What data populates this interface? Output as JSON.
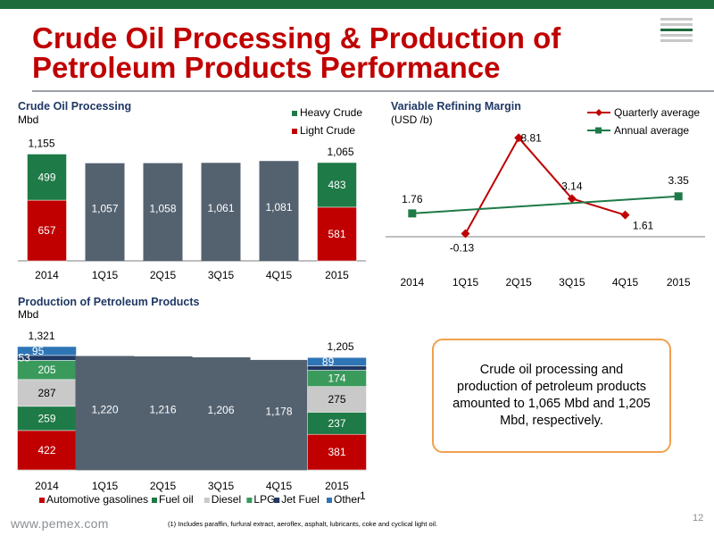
{
  "header": {
    "title_line1": "Crude Oil Processing & Production of",
    "title_line2": "Petroleum Products Performance",
    "page_number": "12",
    "website": "www.pemex.com",
    "footnote": "(1) Includes paraffin, furfural extract, aeroflex, asphalt, lubricants, coke and cyclical light oil.",
    "colors": {
      "brand_green": "#1e6b3c",
      "title_red": "#c00000",
      "callout_border": "#f0a050"
    }
  },
  "callout": {
    "text": "Crude oil processing and production of petroleum products amounted to 1,065 Mbd and 1,205 Mbd, respectively."
  },
  "chart_data": [
    {
      "id": "crude",
      "type": "bar",
      "title": "Crude Oil Processing",
      "subtitle": "Mbd",
      "categories": [
        "2014",
        "1Q15",
        "2Q15",
        "3Q15",
        "4Q15",
        "2015"
      ],
      "stacked_breakdown": [
        {
          "name": "Light Crude",
          "color": "#c00000",
          "values": [
            657,
            null,
            null,
            null,
            null,
            581
          ],
          "labels": [
            "657",
            "",
            "",
            "",
            "",
            "581"
          ]
        },
        {
          "name": "Heavy Crude",
          "color": "#1e7a46",
          "values": [
            499,
            null,
            null,
            null,
            null,
            483
          ],
          "labels": [
            "499",
            "",
            "",
            "",
            "",
            "483"
          ]
        }
      ],
      "totals": [
        1155,
        1057,
        1058,
        1061,
        1081,
        1065
      ],
      "total_labels": [
        "1,155",
        "1,057",
        "1,058",
        "1,061",
        "1,081",
        "1,065"
      ],
      "total_color": "#546270",
      "legend": [
        {
          "name": "Heavy Crude",
          "color": "#1e7a46"
        },
        {
          "name": "Light Crude",
          "color": "#c00000"
        }
      ]
    },
    {
      "id": "margin",
      "type": "line",
      "title": "Variable Refining Margin",
      "subtitle": "(USD /b)",
      "x": [
        "2014",
        "1Q15",
        "2Q15",
        "3Q15",
        "4Q15",
        "2015"
      ],
      "series": [
        {
          "name": "Quarterly average",
          "color": "#c00000",
          "points": [
            {
              "x": "1Q15",
              "y": -0.13,
              "label": "-0.13"
            },
            {
              "x": "2Q15",
              "y": 8.81,
              "label": "8.81"
            },
            {
              "x": "3Q15",
              "y": 3.14,
              "label": "3.14"
            },
            {
              "x": "4Q15",
              "y": 1.61,
              "label": "1.61"
            }
          ]
        },
        {
          "name": "Annual average",
          "color": "#1e7a46",
          "points": [
            {
              "x": "2014",
              "y": 1.76,
              "label": "1.76"
            },
            {
              "x": "2015",
              "y": 3.35,
              "label": "3.35"
            }
          ]
        }
      ],
      "ylim": [
        -1,
        10
      ]
    },
    {
      "id": "products",
      "type": "bar",
      "title": "Production of Petroleum Products",
      "subtitle": "Mbd",
      "categories": [
        "2014",
        "1Q15",
        "2Q15",
        "3Q15",
        "4Q15",
        "2015"
      ],
      "stacked_breakdown": [
        {
          "name": "Automotive gasolines",
          "color": "#c00000",
          "values": [
            422,
            null,
            null,
            null,
            null,
            381
          ],
          "labels": [
            "422",
            "",
            "",
            "",
            "",
            "381"
          ]
        },
        {
          "name": "Fuel oil",
          "color": "#1e7a46",
          "values": [
            259,
            null,
            null,
            null,
            null,
            237
          ],
          "labels": [
            "259",
            "",
            "",
            "",
            "",
            "237"
          ]
        },
        {
          "name": "Diesel",
          "color": "#c9c9c9",
          "values": [
            287,
            null,
            null,
            null,
            null,
            275
          ],
          "labels": [
            "287",
            "",
            "",
            "",
            "",
            "275"
          ]
        },
        {
          "name": "LPG",
          "color": "#3a9a5c",
          "values": [
            205,
            null,
            null,
            null,
            null,
            174
          ],
          "labels": [
            "205",
            "",
            "",
            "",
            "",
            "174"
          ]
        },
        {
          "name": "Jet Fuel",
          "color": "#1f3864",
          "values": [
            53,
            null,
            null,
            null,
            null,
            48
          ],
          "labels": [
            "53",
            "",
            "",
            "",
            "",
            "48"
          ]
        },
        {
          "name": "Other",
          "color": "#2e75b6",
          "values": [
            95,
            null,
            null,
            null,
            null,
            89
          ],
          "labels": [
            "95",
            "",
            "",
            "",
            "",
            "89"
          ]
        }
      ],
      "totals": [
        1321,
        1220,
        1216,
        1206,
        1178,
        1205
      ],
      "total_labels": [
        "1,321",
        "1,220",
        "1,216",
        "1,206",
        "1,178",
        "1,205"
      ],
      "total_color": "#546270",
      "legend": [
        {
          "name": "Automotive gasolines",
          "color": "#c00000"
        },
        {
          "name": "Fuel oil",
          "color": "#1e7a46"
        },
        {
          "name": "Diesel",
          "color": "#c9c9c9"
        },
        {
          "name": "LPG",
          "color": "#3a9a5c"
        },
        {
          "name": "Jet Fuel",
          "color": "#1f3864"
        },
        {
          "name": "Other",
          "color": "#2e75b6",
          "superscript": "1"
        }
      ]
    }
  ]
}
